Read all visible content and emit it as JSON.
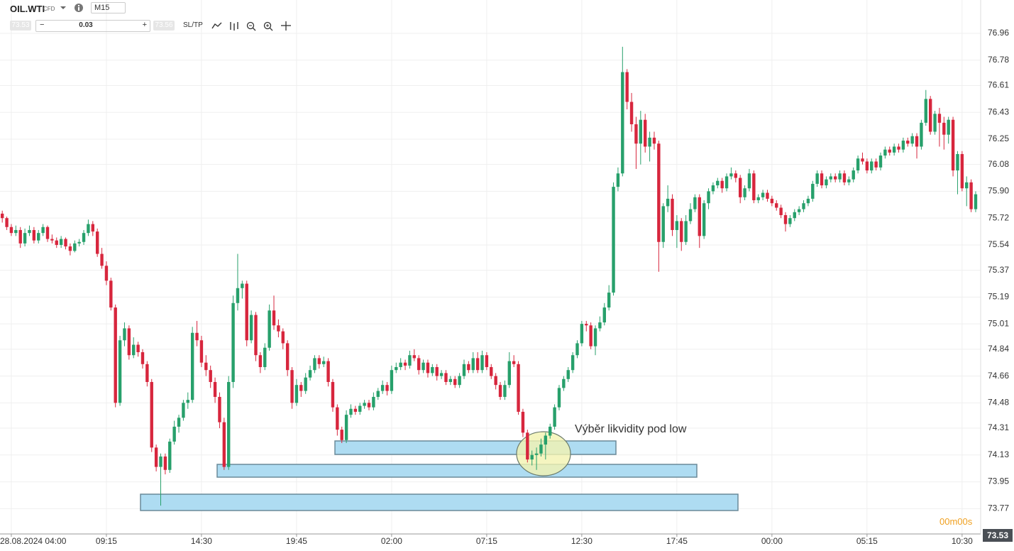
{
  "ui": {
    "symbol": "OIL.WTI",
    "symbol_type": "CFD",
    "timeframe": "M15",
    "bid": 73.53,
    "volume": 0.03,
    "ask": 73.56,
    "sltp": "SL/TP",
    "countdown_minutes": "00m",
    "countdown_seconds": "00s",
    "last_price": 73.53
  },
  "chart_data": {
    "type": "candlestick",
    "up_color": "#27a06b",
    "down_color": "#d7263d",
    "grid": true,
    "annotation": "Výběr likvidity pod low",
    "xlim": [
      -0.5,
      216.1
    ],
    "ylim": [
      73.6,
      77.184
    ],
    "xticks": [
      {
        "value": 2,
        "label": "28.08.2024 04:00"
      },
      {
        "value": 23,
        "label": "09:15"
      },
      {
        "value": 44,
        "label": "14:30"
      },
      {
        "value": 65,
        "label": "19:45"
      },
      {
        "value": 86,
        "label": "02:00"
      },
      {
        "value": 107,
        "label": "07:15"
      },
      {
        "value": 128,
        "label": "12:30"
      },
      {
        "value": 149,
        "label": "17:45"
      },
      {
        "value": 170,
        "label": "00:00"
      },
      {
        "value": 191,
        "label": "05:15"
      },
      {
        "value": 212,
        "label": "10:30"
      }
    ],
    "yticks": [
      76.96,
      76.78,
      76.61,
      76.43,
      76.25,
      76.08,
      {
        "value": 75.9,
        "label": "75.90"
      },
      75.72,
      75.54,
      75.37,
      75.19,
      75.01,
      74.84,
      74.66,
      74.48,
      74.31,
      74.13,
      73.95,
      73.77
    ],
    "candles": [
      [
        75.75,
        75.77,
        75.69,
        75.72
      ],
      [
        75.72,
        75.73,
        75.64,
        75.66
      ],
      [
        75.66,
        75.68,
        75.6,
        75.62
      ],
      [
        75.62,
        75.67,
        75.6,
        75.64
      ],
      [
        75.64,
        75.66,
        75.52,
        75.55
      ],
      [
        75.55,
        75.65,
        75.53,
        75.62
      ],
      [
        75.62,
        75.67,
        75.6,
        75.64
      ],
      [
        75.64,
        75.66,
        75.55,
        75.57
      ],
      [
        75.57,
        75.64,
        75.55,
        75.62
      ],
      [
        75.62,
        75.68,
        75.6,
        75.66
      ],
      [
        75.66,
        75.67,
        75.56,
        75.58
      ],
      [
        75.58,
        75.61,
        75.55,
        75.57
      ],
      [
        75.57,
        75.59,
        75.52,
        75.54
      ],
      [
        75.54,
        75.6,
        75.52,
        75.58
      ],
      [
        75.58,
        75.59,
        75.51,
        75.53
      ],
      [
        75.53,
        75.55,
        75.47,
        75.5
      ],
      [
        75.5,
        75.57,
        75.49,
        75.55
      ],
      [
        75.55,
        75.58,
        75.53,
        75.56
      ],
      [
        75.56,
        75.64,
        75.54,
        75.62
      ],
      [
        75.62,
        75.71,
        75.6,
        75.68
      ],
      [
        75.68,
        75.7,
        75.6,
        75.63
      ],
      [
        75.63,
        75.65,
        75.46,
        75.48
      ],
      [
        75.48,
        75.52,
        75.38,
        75.4
      ],
      [
        75.4,
        75.43,
        75.27,
        75.3
      ],
      [
        75.3,
        75.32,
        75.1,
        75.12
      ],
      [
        75.12,
        75.14,
        74.45,
        74.48
      ],
      [
        74.48,
        74.93,
        74.46,
        74.9
      ],
      [
        74.9,
        75.02,
        74.86,
        74.98
      ],
      [
        74.98,
        75.0,
        74.77,
        74.8
      ],
      [
        74.8,
        74.92,
        74.78,
        74.87
      ],
      [
        74.87,
        74.89,
        74.79,
        74.82
      ],
      [
        74.82,
        74.84,
        74.71,
        74.74
      ],
      [
        74.74,
        74.76,
        74.59,
        74.62
      ],
      [
        74.62,
        74.64,
        74.15,
        74.18
      ],
      [
        74.18,
        74.2,
        74.02,
        74.05
      ],
      [
        74.05,
        74.14,
        73.79,
        74.12
      ],
      [
        74.12,
        74.14,
        74.0,
        74.03
      ],
      [
        74.03,
        74.24,
        74.01,
        74.22
      ],
      [
        74.22,
        74.36,
        74.2,
        74.32
      ],
      [
        74.32,
        74.4,
        74.28,
        74.38
      ],
      [
        74.38,
        74.5,
        74.36,
        74.48
      ],
      [
        74.48,
        74.55,
        74.44,
        74.5
      ],
      [
        74.5,
        74.99,
        74.48,
        74.95
      ],
      [
        74.95,
        75.03,
        74.86,
        74.9
      ],
      [
        74.9,
        74.93,
        74.72,
        74.75
      ],
      [
        74.75,
        74.8,
        74.66,
        74.7
      ],
      [
        74.7,
        74.73,
        74.58,
        74.62
      ],
      [
        74.62,
        74.65,
        74.48,
        74.52
      ],
      [
        74.52,
        74.55,
        74.31,
        74.35
      ],
      [
        74.35,
        74.38,
        74.03,
        74.05
      ],
      [
        74.05,
        74.66,
        74.03,
        74.62
      ],
      [
        74.62,
        75.2,
        74.58,
        75.15
      ],
      [
        75.15,
        75.48,
        75.1,
        75.25
      ],
      [
        75.25,
        75.3,
        75.18,
        75.28
      ],
      [
        75.28,
        75.3,
        74.86,
        74.9
      ],
      [
        74.9,
        75.1,
        74.88,
        75.07
      ],
      [
        75.07,
        75.09,
        74.76,
        74.8
      ],
      [
        74.8,
        74.82,
        74.68,
        74.72
      ],
      [
        74.72,
        74.88,
        74.7,
        74.85
      ],
      [
        74.85,
        75.14,
        74.83,
        75.1
      ],
      [
        75.1,
        75.2,
        74.97,
        75.0
      ],
      [
        75.0,
        75.04,
        74.92,
        74.96
      ],
      [
        74.96,
        74.98,
        74.84,
        74.88
      ],
      [
        74.88,
        74.9,
        74.66,
        74.7
      ],
      [
        74.7,
        74.72,
        74.44,
        74.48
      ],
      [
        74.48,
        74.64,
        74.46,
        74.6
      ],
      [
        74.6,
        74.62,
        74.52,
        74.56
      ],
      [
        74.56,
        74.68,
        74.54,
        74.65
      ],
      [
        74.65,
        74.73,
        74.63,
        74.7
      ],
      [
        74.7,
        74.8,
        74.68,
        74.78
      ],
      [
        74.78,
        74.8,
        74.71,
        74.74
      ],
      [
        74.74,
        74.79,
        74.72,
        74.76
      ],
      [
        74.76,
        74.78,
        74.59,
        74.62
      ],
      [
        74.62,
        74.64,
        74.42,
        74.45
      ],
      [
        74.45,
        74.47,
        74.26,
        74.3
      ],
      [
        74.3,
        74.32,
        74.21,
        74.23
      ],
      [
        74.23,
        74.43,
        74.21,
        74.4
      ],
      [
        74.4,
        74.47,
        74.38,
        74.44
      ],
      [
        74.44,
        74.46,
        74.4,
        74.42
      ],
      [
        74.42,
        74.48,
        74.4,
        74.46
      ],
      [
        74.46,
        74.5,
        74.44,
        74.48
      ],
      [
        74.48,
        74.5,
        74.43,
        74.45
      ],
      [
        74.45,
        74.55,
        74.43,
        74.52
      ],
      [
        74.52,
        74.58,
        74.5,
        74.56
      ],
      [
        74.56,
        74.63,
        74.54,
        74.6
      ],
      [
        74.6,
        74.62,
        74.53,
        74.56
      ],
      [
        74.56,
        74.73,
        74.54,
        74.7
      ],
      [
        74.7,
        74.75,
        74.68,
        74.72
      ],
      [
        74.72,
        74.78,
        74.7,
        74.75
      ],
      [
        74.75,
        74.77,
        74.7,
        74.73
      ],
      [
        74.73,
        74.83,
        74.71,
        74.8
      ],
      [
        74.8,
        74.84,
        74.76,
        74.78
      ],
      [
        74.78,
        74.8,
        74.67,
        74.7
      ],
      [
        74.7,
        74.77,
        74.68,
        74.75
      ],
      [
        74.75,
        74.77,
        74.65,
        74.68
      ],
      [
        74.68,
        74.74,
        74.66,
        74.72
      ],
      [
        74.72,
        74.74,
        74.63,
        74.66
      ],
      [
        74.66,
        74.7,
        74.64,
        74.68
      ],
      [
        74.68,
        74.7,
        74.6,
        74.62
      ],
      [
        74.62,
        74.66,
        74.6,
        74.64
      ],
      [
        74.64,
        74.66,
        74.58,
        74.6
      ],
      [
        74.6,
        74.68,
        74.58,
        74.66
      ],
      [
        74.66,
        74.77,
        74.64,
        74.74
      ],
      [
        74.74,
        74.76,
        74.68,
        74.7
      ],
      [
        74.7,
        74.82,
        74.68,
        74.78
      ],
      [
        74.78,
        74.82,
        74.68,
        74.7
      ],
      [
        74.7,
        74.83,
        74.68,
        74.8
      ],
      [
        74.8,
        74.82,
        74.7,
        74.72
      ],
      [
        74.72,
        74.74,
        74.64,
        74.66
      ],
      [
        74.66,
        74.68,
        74.57,
        74.6
      ],
      [
        74.6,
        74.62,
        74.5,
        74.52
      ],
      [
        74.52,
        74.63,
        74.5,
        74.6
      ],
      [
        74.6,
        74.82,
        74.58,
        74.76
      ],
      [
        74.76,
        74.8,
        74.72,
        74.74
      ],
      [
        74.74,
        74.76,
        74.4,
        74.42
      ],
      [
        74.42,
        74.44,
        74.25,
        74.28
      ],
      [
        74.28,
        74.3,
        74.08,
        74.1
      ],
      [
        74.1,
        74.16,
        74.06,
        74.13
      ],
      [
        74.13,
        74.18,
        74.03,
        74.14
      ],
      [
        74.14,
        74.24,
        74.12,
        74.2
      ],
      [
        74.2,
        74.28,
        74.1,
        74.26
      ],
      [
        74.26,
        74.34,
        74.24,
        74.32
      ],
      [
        74.32,
        74.47,
        74.3,
        74.45
      ],
      [
        74.45,
        74.6,
        74.43,
        74.58
      ],
      [
        74.58,
        74.66,
        74.56,
        74.64
      ],
      [
        74.64,
        74.72,
        74.62,
        74.7
      ],
      [
        74.7,
        74.82,
        74.68,
        74.8
      ],
      [
        74.8,
        74.9,
        74.78,
        74.88
      ],
      [
        74.88,
        75.03,
        74.86,
        75.01
      ],
      [
        75.01,
        75.03,
        74.96,
        75.0
      ],
      [
        75.0,
        75.02,
        74.84,
        74.86
      ],
      [
        74.86,
        75.0,
        74.8,
        74.98
      ],
      [
        74.98,
        75.06,
        74.96,
        75.02
      ],
      [
        75.02,
        75.15,
        75.0,
        75.12
      ],
      [
        75.12,
        75.27,
        75.1,
        75.22
      ],
      [
        75.22,
        75.96,
        75.2,
        75.93
      ],
      [
        75.93,
        76.06,
        75.9,
        76.02
      ],
      [
        76.02,
        76.87,
        76.0,
        76.7
      ],
      [
        76.7,
        76.72,
        76.45,
        76.5
      ],
      [
        76.5,
        76.56,
        76.3,
        76.35
      ],
      [
        76.35,
        76.4,
        76.05,
        76.22
      ],
      [
        76.22,
        76.44,
        76.08,
        76.38
      ],
      [
        76.38,
        76.42,
        76.16,
        76.2
      ],
      [
        76.2,
        76.3,
        76.1,
        76.26
      ],
      [
        76.26,
        76.3,
        76.18,
        76.22
      ],
      [
        76.22,
        76.24,
        75.36,
        75.56
      ],
      [
        75.56,
        75.82,
        75.52,
        75.8
      ],
      [
        75.8,
        75.94,
        75.76,
        75.85
      ],
      [
        75.85,
        75.88,
        75.6,
        75.64
      ],
      [
        75.64,
        75.74,
        75.52,
        75.7
      ],
      [
        75.7,
        75.72,
        75.5,
        75.56
      ],
      [
        75.56,
        75.74,
        75.54,
        75.7
      ],
      [
        75.7,
        75.82,
        75.68,
        75.78
      ],
      [
        75.78,
        75.88,
        75.76,
        75.86
      ],
      [
        75.86,
        75.88,
        75.52,
        75.6
      ],
      [
        75.6,
        75.84,
        75.58,
        75.82
      ],
      [
        75.82,
        75.92,
        75.78,
        75.9
      ],
      [
        75.9,
        75.96,
        75.88,
        75.94
      ],
      [
        75.94,
        75.99,
        75.92,
        75.97
      ],
      [
        75.97,
        75.99,
        75.89,
        75.92
      ],
      [
        75.92,
        76.02,
        75.9,
        76.0
      ],
      [
        76.0,
        76.06,
        75.98,
        76.02
      ],
      [
        76.02,
        76.04,
        75.96,
        75.99
      ],
      [
        75.99,
        76.01,
        75.82,
        75.86
      ],
      [
        75.86,
        75.94,
        75.84,
        75.92
      ],
      [
        75.92,
        76.05,
        75.9,
        76.02
      ],
      [
        76.02,
        76.04,
        75.82,
        75.84
      ],
      [
        75.84,
        75.88,
        75.82,
        75.86
      ],
      [
        75.86,
        75.91,
        75.84,
        75.89
      ],
      [
        75.89,
        75.91,
        75.83,
        75.85
      ],
      [
        75.85,
        75.87,
        75.8,
        75.82
      ],
      [
        75.82,
        75.84,
        75.77,
        75.79
      ],
      [
        75.79,
        75.81,
        75.72,
        75.74
      ],
      [
        75.74,
        75.76,
        75.63,
        75.68
      ],
      [
        75.68,
        75.74,
        75.66,
        75.72
      ],
      [
        75.72,
        75.78,
        75.7,
        75.76
      ],
      [
        75.76,
        75.8,
        75.74,
        75.78
      ],
      [
        75.78,
        75.84,
        75.76,
        75.82
      ],
      [
        75.82,
        75.87,
        75.8,
        75.85
      ],
      [
        75.85,
        75.97,
        75.83,
        75.95
      ],
      [
        75.95,
        76.04,
        75.93,
        76.02
      ],
      [
        76.02,
        76.04,
        75.92,
        75.94
      ],
      [
        75.94,
        76.0,
        75.92,
        75.98
      ],
      [
        75.98,
        76.02,
        75.96,
        76.0
      ],
      [
        76.0,
        76.02,
        75.96,
        75.98
      ],
      [
        75.98,
        76.04,
        75.96,
        76.02
      ],
      [
        76.02,
        76.04,
        75.94,
        75.96
      ],
      [
        75.96,
        76.0,
        75.94,
        75.98
      ],
      [
        75.98,
        76.06,
        75.96,
        76.04
      ],
      [
        76.04,
        76.14,
        76.02,
        76.12
      ],
      [
        76.12,
        76.16,
        76.08,
        76.1
      ],
      [
        76.1,
        76.12,
        76.02,
        76.04
      ],
      [
        76.04,
        76.12,
        76.02,
        76.1
      ],
      [
        76.1,
        76.12,
        76.04,
        76.06
      ],
      [
        76.06,
        76.16,
        76.04,
        76.14
      ],
      [
        76.14,
        76.2,
        76.12,
        76.18
      ],
      [
        76.18,
        76.2,
        76.14,
        76.16
      ],
      [
        76.16,
        76.22,
        76.14,
        76.2
      ],
      [
        76.2,
        76.22,
        76.16,
        76.18
      ],
      [
        76.18,
        76.26,
        76.16,
        76.24
      ],
      [
        76.24,
        76.26,
        76.2,
        76.22
      ],
      [
        76.22,
        76.29,
        76.2,
        76.27
      ],
      [
        76.27,
        76.29,
        76.12,
        76.2
      ],
      [
        76.2,
        76.38,
        76.18,
        76.36
      ],
      [
        76.36,
        76.58,
        76.34,
        76.52
      ],
      [
        76.52,
        76.54,
        76.28,
        76.3
      ],
      [
        76.3,
        76.44,
        76.28,
        76.42
      ],
      [
        76.42,
        76.46,
        76.2,
        76.36
      ],
      [
        76.36,
        76.4,
        76.18,
        76.28
      ],
      [
        76.28,
        76.4,
        76.22,
        76.38
      ],
      [
        76.38,
        76.4,
        76.0,
        76.04
      ],
      [
        76.04,
        76.17,
        75.88,
        76.15
      ],
      [
        76.15,
        76.17,
        75.9,
        75.92
      ],
      [
        75.92,
        76.0,
        75.8,
        75.96
      ],
      [
        75.96,
        75.98,
        75.76,
        75.78
      ],
      [
        75.78,
        75.9,
        75.76,
        75.88
      ]
    ]
  }
}
